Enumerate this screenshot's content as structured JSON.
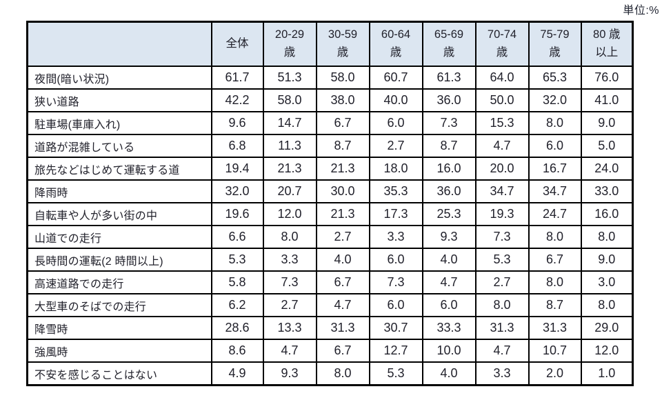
{
  "unit_label": "単位:%",
  "colors": {
    "header_bg": "#dce6f1",
    "border": "#000000",
    "text": "#21212b"
  },
  "table": {
    "corner_label": "",
    "columns": [
      "全体",
      "20-29\n歳",
      "30-59\n歳",
      "60-64\n歳",
      "65-69\n歳",
      "70-74\n歳",
      "75-79\n歳",
      "80 歳\n以上"
    ],
    "rows": [
      {
        "label": "夜間(暗い状況)",
        "values": [
          "61.7",
          "51.3",
          "58.0",
          "60.7",
          "61.3",
          "64.0",
          "65.3",
          "76.0"
        ]
      },
      {
        "label": "狭い道路",
        "values": [
          "42.2",
          "58.0",
          "38.0",
          "40.0",
          "36.0",
          "50.0",
          "32.0",
          "41.0"
        ]
      },
      {
        "label": "駐車場(車庫入れ)",
        "values": [
          "9.6",
          "14.7",
          "6.7",
          "6.0",
          "7.3",
          "15.3",
          "8.0",
          "9.0"
        ]
      },
      {
        "label": "道路が混雑している",
        "values": [
          "6.8",
          "11.3",
          "8.7",
          "2.7",
          "8.7",
          "4.7",
          "6.0",
          "5.0"
        ]
      },
      {
        "label": "旅先などはじめて運転する道",
        "values": [
          "19.4",
          "21.3",
          "21.3",
          "18.0",
          "16.0",
          "20.0",
          "16.7",
          "24.0"
        ]
      },
      {
        "label": "降雨時",
        "values": [
          "32.0",
          "20.7",
          "30.0",
          "35.3",
          "36.0",
          "34.7",
          "34.7",
          "33.0"
        ]
      },
      {
        "label": "自転車や人が多い街の中",
        "values": [
          "19.6",
          "12.0",
          "21.3",
          "17.3",
          "25.3",
          "19.3",
          "24.7",
          "16.0"
        ]
      },
      {
        "label": "山道での走行",
        "values": [
          "6.6",
          "8.0",
          "2.7",
          "3.3",
          "9.3",
          "7.3",
          "8.0",
          "8.0"
        ]
      },
      {
        "label": "長時間の運転(2 時間以上)",
        "values": [
          "5.3",
          "3.3",
          "4.0",
          "6.0",
          "4.0",
          "5.3",
          "6.7",
          "9.0"
        ]
      },
      {
        "label": "高速道路での走行",
        "values": [
          "5.8",
          "7.3",
          "6.7",
          "7.3",
          "4.7",
          "2.7",
          "8.0",
          "3.0"
        ]
      },
      {
        "label": "大型車のそばでの走行",
        "values": [
          "6.2",
          "2.7",
          "4.7",
          "6.0",
          "6.0",
          "8.0",
          "8.7",
          "8.0"
        ]
      },
      {
        "label": "降雪時",
        "values": [
          "28.6",
          "13.3",
          "31.3",
          "30.7",
          "33.3",
          "31.3",
          "31.3",
          "29.0"
        ]
      },
      {
        "label": "強風時",
        "values": [
          "8.6",
          "4.7",
          "6.7",
          "12.7",
          "10.0",
          "4.7",
          "10.7",
          "12.0"
        ]
      },
      {
        "label": "不安を感じることはない",
        "values": [
          "4.9",
          "9.3",
          "8.0",
          "5.3",
          "4.0",
          "3.3",
          "2.0",
          "1.0"
        ]
      }
    ]
  }
}
